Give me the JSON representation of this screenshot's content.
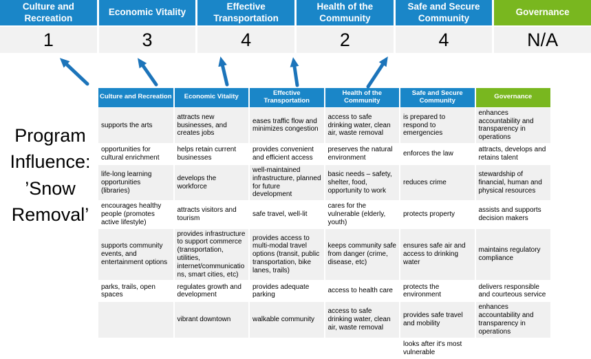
{
  "colors": {
    "header_blue": "#1a86c8",
    "header_green": "#79b71f",
    "highlight": "#ffff9e",
    "row_band": "#f0f0f0",
    "score_bg": "#f2f2f2",
    "arrow_blue": "#1c74ba"
  },
  "program_label": "Program Influence: ’Snow Removal’",
  "banner": {
    "columns": [
      {
        "label": "Culture and Recreation",
        "score": "1",
        "green": false
      },
      {
        "label": "Economic Vitality",
        "score": "3",
        "green": false
      },
      {
        "label": "Effective Transportation",
        "score": "4",
        "green": false
      },
      {
        "label": "Health of the Community",
        "score": "2",
        "green": false
      },
      {
        "label": "Safe and Secure Community",
        "score": "4",
        "green": false
      },
      {
        "label": "Governance",
        "score": "N/A",
        "green": true
      }
    ]
  },
  "matrix": {
    "headers": [
      {
        "label": "Culture and Recreation",
        "green": false
      },
      {
        "label": "Economic Vitality",
        "green": false
      },
      {
        "label": "Effective Transportation",
        "green": false
      },
      {
        "label": "Health of the Community",
        "green": false
      },
      {
        "label": "Safe and Secure Community",
        "green": true,
        "green_override": false
      },
      {
        "label": "Governance",
        "green": true
      }
    ],
    "rows": [
      [
        {
          "text": "supports the arts",
          "hl": false
        },
        {
          "text": "attracts new businesses, and creates jobs",
          "hl": false
        },
        {
          "text": "eases traffic flow and minimizes congestion",
          "hl": true
        },
        {
          "text": "access to safe drinking water, clean air, waste removal",
          "hl": false
        },
        {
          "text": "is prepared to respond to emergencies",
          "hl": true
        },
        {
          "text": "enhances accountability and transparency in operations",
          "hl": false
        }
      ],
      [
        {
          "text": "opportunities for cultural enrichment",
          "hl": false
        },
        {
          "text": "helps retain current businesses",
          "hl": true
        },
        {
          "text": "provides convenient and efficient access",
          "hl": true
        },
        {
          "text": "preserves the natural environment",
          "hl": false
        },
        {
          "text": "enforces the law",
          "hl": false
        },
        {
          "text": "attracts, develops and retains talent",
          "hl": false
        }
      ],
      [
        {
          "text": "life-long learning opportunities (libraries)",
          "hl": false
        },
        {
          "text": "develops the workforce",
          "hl": false
        },
        {
          "text": "well-maintained infrastructure, planned for future development",
          "hl": false
        },
        {
          "text": "basic needs – safety, shelter, food, opportunity to work",
          "hl": true
        },
        {
          "text": "reduces crime",
          "hl": false
        },
        {
          "text": "stewardship of financial, human and physical resources",
          "hl": false
        }
      ],
      [
        {
          "text": "encourages healthy people (promotes active lifestyle)",
          "hl": false
        },
        {
          "text": "attracts visitors and tourism",
          "hl": false
        },
        {
          "text": "safe travel, well-lit",
          "hl": true
        },
        {
          "text": "cares for the vulnerable (elderly, youth)",
          "hl": true
        },
        {
          "text": "protects property",
          "hl": true
        },
        {
          "text": "assists and supports decision makers",
          "hl": false
        }
      ],
      [
        {
          "text": "supports community events, and entertainment options",
          "hl": false
        },
        {
          "text": "provides infrastructure to support commerce (transportation, utilities, internet/communications, smart cities, etc)",
          "hl": true
        },
        {
          "text": "provides access to multi-modal travel options (transit, public transportation, bike lanes, trails)",
          "hl": true
        },
        {
          "text": "keeps community safe from danger (crime, disease, etc)",
          "hl": true
        },
        {
          "text": "ensures safe air and access to drinking water",
          "hl": false
        },
        {
          "text": "maintains regulatory compliance",
          "hl": false
        }
      ],
      [
        {
          "text": "parks, trails, open spaces",
          "hl": true
        },
        {
          "text": "regulates growth and development",
          "hl": false
        },
        {
          "text": "provides adequate parking",
          "hl": false
        },
        {
          "text": "access to health care",
          "hl": false
        },
        {
          "text": "protects the environment",
          "hl": false
        },
        {
          "text": "delivers responsible and courteous service",
          "hl": false
        }
      ],
      [
        {
          "text": "",
          "hl": false
        },
        {
          "text": "vibrant downtown",
          "hl": false
        },
        {
          "text": "walkable community",
          "hl": false
        },
        {
          "text": "access to safe drinking water, clean air, waste removal",
          "hl": false
        },
        {
          "text": "provides safe travel and mobility",
          "hl": true
        },
        {
          "text": "enhances accountability and transparency in operations",
          "hl": false
        }
      ],
      [
        {
          "text": "",
          "hl": false
        },
        {
          "text": "",
          "hl": false
        },
        {
          "text": "",
          "hl": false
        },
        {
          "text": "",
          "hl": false
        },
        {
          "text": "looks after it's most vulnerable",
          "hl": true
        },
        {
          "text": "",
          "hl": false
        }
      ]
    ]
  }
}
